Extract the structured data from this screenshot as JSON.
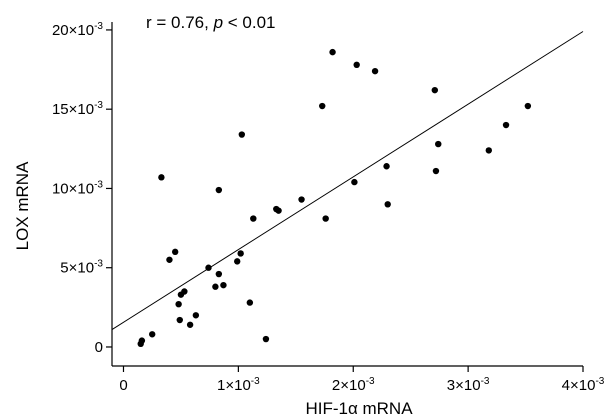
{
  "chart_data": {
    "type": "scatter",
    "annotation": {
      "prefix": "r = 0.76, ",
      "p_symbol": "p",
      "suffix": " < 0.01"
    },
    "xlabel": "HIF-1α mRNA",
    "ylabel": "LOX mRNA",
    "xlim": [
      -0.0001,
      0.004
    ],
    "ylim": [
      -0.0012,
      0.0205
    ],
    "x_ticks": [
      {
        "value": 0,
        "base": "0",
        "exp": ""
      },
      {
        "value": 0.001,
        "base": "1×10",
        "exp": "-3"
      },
      {
        "value": 0.002,
        "base": "2×10",
        "exp": "-3"
      },
      {
        "value": 0.003,
        "base": "3×10",
        "exp": "-3"
      },
      {
        "value": 0.004,
        "base": "4×10",
        "exp": "-3"
      }
    ],
    "y_ticks": [
      {
        "value": 0,
        "base": "0",
        "exp": ""
      },
      {
        "value": 0.005,
        "base": "5×10",
        "exp": "-3"
      },
      {
        "value": 0.01,
        "base": "10×10",
        "exp": "-3"
      },
      {
        "value": 0.015,
        "base": "15×10",
        "exp": "-3"
      },
      {
        "value": 0.02,
        "base": "20×10",
        "exp": "-3"
      }
    ],
    "points": [
      {
        "x": 0.00015,
        "y": 0.0002
      },
      {
        "x": 0.00016,
        "y": 0.0004
      },
      {
        "x": 0.00025,
        "y": 0.0008
      },
      {
        "x": 0.00033,
        "y": 0.0107
      },
      {
        "x": 0.0004,
        "y": 0.0055
      },
      {
        "x": 0.00045,
        "y": 0.006
      },
      {
        "x": 0.00048,
        "y": 0.0027
      },
      {
        "x": 0.00049,
        "y": 0.0017
      },
      {
        "x": 0.0005,
        "y": 0.0033
      },
      {
        "x": 0.00053,
        "y": 0.0035
      },
      {
        "x": 0.00058,
        "y": 0.0014
      },
      {
        "x": 0.00063,
        "y": 0.002
      },
      {
        "x": 0.00074,
        "y": 0.005
      },
      {
        "x": 0.0008,
        "y": 0.0038
      },
      {
        "x": 0.00083,
        "y": 0.0046
      },
      {
        "x": 0.00083,
        "y": 0.0099
      },
      {
        "x": 0.00087,
        "y": 0.0039
      },
      {
        "x": 0.00099,
        "y": 0.0054
      },
      {
        "x": 0.00102,
        "y": 0.0059
      },
      {
        "x": 0.00103,
        "y": 0.0134
      },
      {
        "x": 0.0011,
        "y": 0.0028
      },
      {
        "x": 0.00113,
        "y": 0.0081
      },
      {
        "x": 0.00124,
        "y": 0.0005
      },
      {
        "x": 0.00133,
        "y": 0.0087
      },
      {
        "x": 0.00135,
        "y": 0.0086
      },
      {
        "x": 0.00155,
        "y": 0.0093
      },
      {
        "x": 0.00173,
        "y": 0.0152
      },
      {
        "x": 0.00176,
        "y": 0.0081
      },
      {
        "x": 0.00182,
        "y": 0.0186
      },
      {
        "x": 0.00201,
        "y": 0.0104
      },
      {
        "x": 0.00203,
        "y": 0.0178
      },
      {
        "x": 0.00219,
        "y": 0.0174
      },
      {
        "x": 0.00229,
        "y": 0.0114
      },
      {
        "x": 0.0023,
        "y": 0.009
      },
      {
        "x": 0.00271,
        "y": 0.0162
      },
      {
        "x": 0.00272,
        "y": 0.0111
      },
      {
        "x": 0.00274,
        "y": 0.0128
      },
      {
        "x": 0.00318,
        "y": 0.0124
      },
      {
        "x": 0.00333,
        "y": 0.014
      },
      {
        "x": 0.00352,
        "y": 0.0152
      }
    ],
    "fit_line": {
      "x": [
        -0.0001,
        0.004
      ],
      "y": [
        0.0011,
        0.0199
      ]
    },
    "grid": false,
    "legend": "none"
  }
}
